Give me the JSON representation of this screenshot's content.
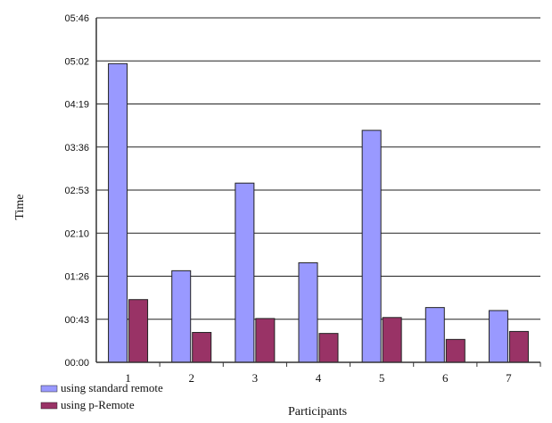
{
  "chart_data": {
    "type": "bar",
    "title": "",
    "xlabel": "Participants",
    "ylabel": "Time",
    "categories": [
      "1",
      "2",
      "3",
      "4",
      "5",
      "6",
      "7"
    ],
    "y_ticks": [
      "00:00",
      "00:43",
      "01:26",
      "02:10",
      "02:53",
      "03:36",
      "04:19",
      "05:02",
      "05:46"
    ],
    "y_unit": "seconds",
    "ylim": [
      0,
      346
    ],
    "grid": true,
    "legend_position": "bottom-left",
    "series": [
      {
        "name": "using standard remote",
        "color": "#9999ff",
        "values": [
          300,
          92,
          180,
          100,
          233,
          55,
          52
        ]
      },
      {
        "name": "using p-Remote",
        "color": "#993366",
        "values": [
          63,
          30,
          44,
          29,
          45,
          23,
          31
        ]
      }
    ]
  }
}
